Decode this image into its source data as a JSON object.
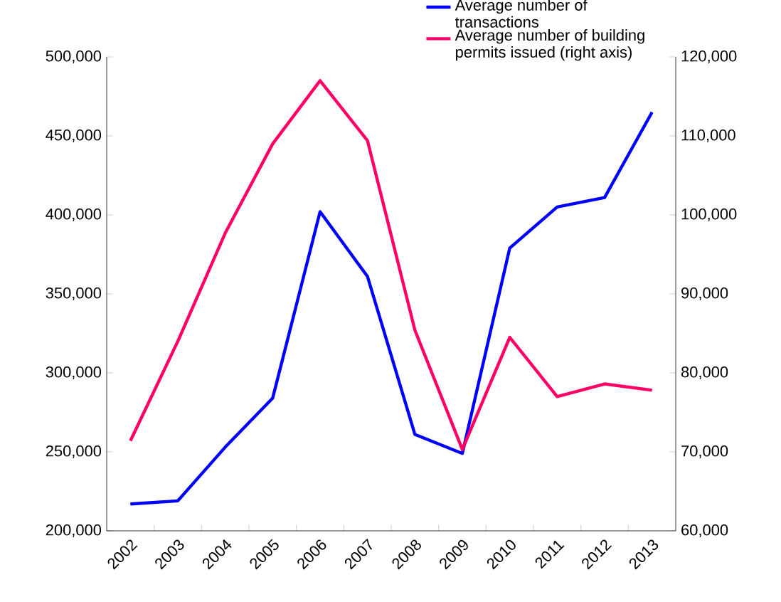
{
  "chart_data": {
    "type": "line",
    "categories": [
      "2002",
      "2003",
      "2004",
      "2005",
      "2006",
      "2007",
      "2008",
      "2009",
      "2010",
      "2011",
      "2012",
      "2013"
    ],
    "series": [
      {
        "name": "Average number of transactions",
        "color": "#0000ff",
        "values": [
          217000,
          219000,
          253000,
          284000,
          402000,
          361000,
          261000,
          249000,
          379000,
          405000,
          411000,
          465000
        ]
      },
      {
        "name": "Average number of building permits issued (right axis)",
        "color": "#ff0066",
        "axis": "y2",
        "values": [
          71400,
          84000,
          97700,
          109000,
          117000,
          109400,
          85400,
          70300,
          84500,
          77000,
          78600,
          77800
        ]
      }
    ],
    "ylim": [
      200000,
      500000
    ],
    "yticks": [
      {
        "value": 200000,
        "label": "200,000"
      },
      {
        "value": 250000,
        "label": "250,000"
      },
      {
        "value": 300000,
        "label": "300,000"
      },
      {
        "value": 350000,
        "label": "350,000"
      },
      {
        "value": 400000,
        "label": "400,000"
      },
      {
        "value": 450000,
        "label": "450,000"
      },
      {
        "value": 500000,
        "label": "500,000"
      }
    ],
    "y2lim": [
      60000,
      120000
    ],
    "y2ticks": [
      {
        "value": 60000,
        "label": "60,000"
      },
      {
        "value": 70000,
        "label": "70,000"
      },
      {
        "value": 80000,
        "label": "80,000"
      },
      {
        "value": 90000,
        "label": "90,000"
      },
      {
        "value": 100000,
        "label": "100,000"
      },
      {
        "value": 110000,
        "label": "110,000"
      },
      {
        "value": 120000,
        "label": "120,000"
      }
    ],
    "grid": false,
    "legend": "top right",
    "marker": "none",
    "line_style": "solid"
  }
}
